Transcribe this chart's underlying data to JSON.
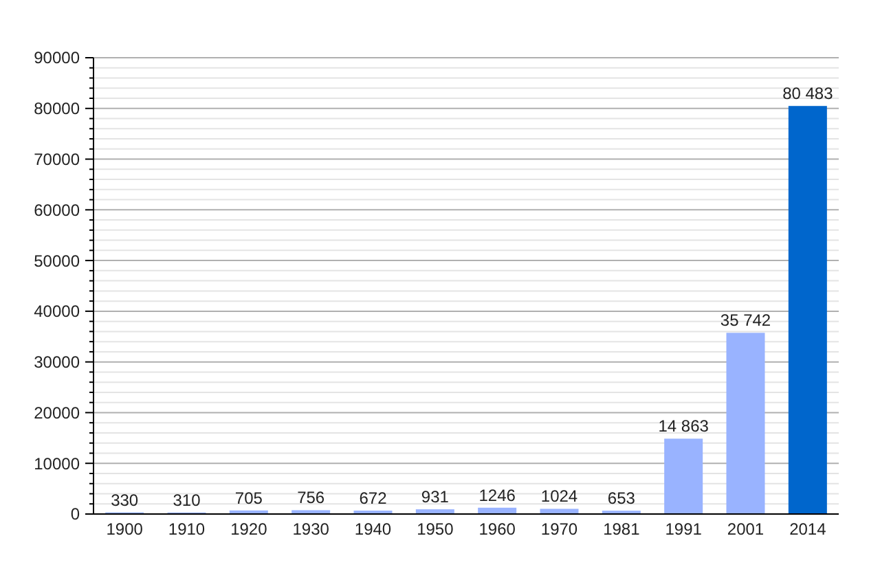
{
  "chart_data": {
    "type": "bar",
    "categories": [
      "1900",
      "1910",
      "1920",
      "1930",
      "1940",
      "1950",
      "1960",
      "1970",
      "1981",
      "1991",
      "2001",
      "2014"
    ],
    "values": [
      330,
      310,
      705,
      756,
      672,
      931,
      1246,
      1024,
      653,
      14863,
      35742,
      80483
    ],
    "value_labels": [
      "330",
      "310",
      "705",
      "756",
      "672",
      "931",
      "1246",
      "1024",
      "653",
      "14 863",
      "35 742",
      "80 483"
    ],
    "colors": [
      "#99b3ff",
      "#99b3ff",
      "#99b3ff",
      "#99b3ff",
      "#99b3ff",
      "#99b3ff",
      "#99b3ff",
      "#99b3ff",
      "#99b3ff",
      "#99b3ff",
      "#99b3ff",
      "#0066cc"
    ],
    "ylim": [
      0,
      90000
    ],
    "yticks": [
      0,
      {
        "value": 2000,
        "label": null
      },
      {
        "value": 4000,
        "label": null
      },
      {
        "value": 6000,
        "label": null
      },
      {
        "value": 8000,
        "label": null
      },
      10000,
      {
        "value": 12000,
        "label": null
      },
      {
        "value": 14000,
        "label": null
      },
      {
        "value": 16000,
        "label": null
      },
      {
        "value": 18000,
        "label": null
      },
      20000,
      {
        "value": 22000,
        "label": null
      },
      {
        "value": 24000,
        "label": null
      },
      {
        "value": 26000,
        "label": null
      },
      {
        "value": 28000,
        "label": null
      },
      30000,
      {
        "value": 32000,
        "label": null
      },
      {
        "value": 34000,
        "label": null
      },
      {
        "value": 36000,
        "label": null
      },
      {
        "value": 38000,
        "label": null
      },
      40000,
      {
        "value": 42000,
        "label": null
      },
      {
        "value": 44000,
        "label": null
      },
      {
        "value": 46000,
        "label": null
      },
      {
        "value": 48000,
        "label": null
      },
      50000,
      {
        "value": 52000,
        "label": null
      },
      {
        "value": 54000,
        "label": null
      },
      {
        "value": 56000,
        "label": null
      },
      {
        "value": 58000,
        "label": null
      },
      60000,
      {
        "value": 62000,
        "label": null
      },
      {
        "value": 64000,
        "label": null
      },
      {
        "value": 66000,
        "label": null
      },
      {
        "value": 68000,
        "label": null
      },
      70000,
      {
        "value": 72000,
        "label": null
      },
      {
        "value": 74000,
        "label": null
      },
      {
        "value": 76000,
        "label": null
      },
      {
        "value": 78000,
        "label": null
      },
      80000,
      {
        "value": 82000,
        "label": null
      },
      {
        "value": 84000,
        "label": null
      },
      {
        "value": 86000,
        "label": null
      },
      {
        "value": 88000,
        "label": null
      },
      90000
    ],
    "grid": true
  }
}
